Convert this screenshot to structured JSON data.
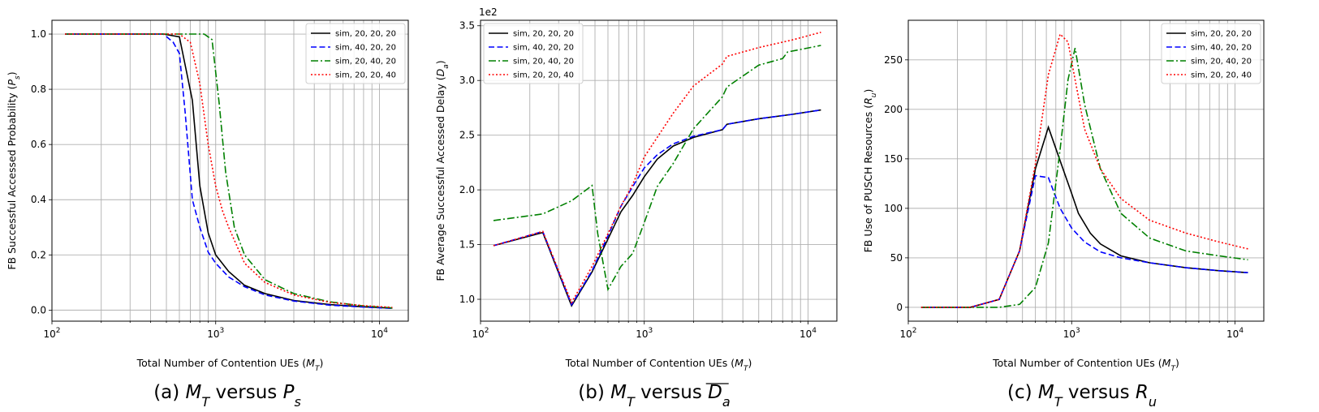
{
  "chart_data": [
    {
      "type": "line",
      "caption": "(a) M_T versus P_s",
      "xlabel": "Total Number of Contention UEs (M_T)",
      "ylabel": "FB Successful Accessed Probability (P_s)",
      "xscale": "log",
      "xlim": [
        100,
        15000
      ],
      "ylim": [
        -0.04,
        1.05
      ],
      "yticks": [
        0.0,
        0.2,
        0.4,
        0.6,
        0.8,
        1.0
      ],
      "ytick_labels": [
        "0.0",
        "0.2",
        "0.4",
        "0.6",
        "0.8",
        "1.0"
      ],
      "y_offset_label": "",
      "grid": true,
      "legend_position": "top-right",
      "series": [
        {
          "name": "sim, 20, 20, 20",
          "color": "#000000",
          "style": "solid",
          "x": [
            120,
            240,
            360,
            480,
            600,
            720,
            800,
            900,
            1000,
            1200,
            1500,
            2000,
            3000,
            5000,
            8000,
            12000
          ],
          "y": [
            1.0,
            1.0,
            1.0,
            1.0,
            0.99,
            0.76,
            0.45,
            0.28,
            0.2,
            0.14,
            0.09,
            0.06,
            0.035,
            0.02,
            0.012,
            0.007
          ]
        },
        {
          "name": "sim, 40, 20, 20",
          "color": "#0000ff",
          "style": "dashed",
          "x": [
            120,
            240,
            360,
            480,
            550,
            600,
            650,
            720,
            800,
            900,
            1000,
            1200,
            1500,
            2000,
            3000,
            5000,
            8000,
            12000
          ],
          "y": [
            1.0,
            1.0,
            1.0,
            1.0,
            0.97,
            0.93,
            0.72,
            0.4,
            0.3,
            0.21,
            0.17,
            0.12,
            0.085,
            0.055,
            0.033,
            0.018,
            0.011,
            0.006
          ]
        },
        {
          "name": "sim, 20, 40, 20",
          "color": "#008000",
          "style": "dashdot",
          "x": [
            120,
            240,
            360,
            480,
            600,
            720,
            850,
            950,
            1050,
            1150,
            1300,
            1500,
            2000,
            3000,
            5000,
            8000,
            12000
          ],
          "y": [
            1.0,
            1.0,
            1.0,
            1.0,
            1.0,
            1.0,
            1.0,
            0.98,
            0.75,
            0.5,
            0.3,
            0.2,
            0.11,
            0.06,
            0.03,
            0.015,
            0.008
          ]
        },
        {
          "name": "sim, 20, 20, 40",
          "color": "#ff0000",
          "style": "dotted",
          "x": [
            120,
            240,
            360,
            480,
            600,
            700,
            800,
            900,
            1000,
            1100,
            1200,
            1500,
            2000,
            3000,
            5000,
            8000,
            12000
          ],
          "y": [
            1.0,
            1.0,
            1.0,
            1.0,
            1.0,
            0.97,
            0.82,
            0.6,
            0.45,
            0.36,
            0.3,
            0.17,
            0.1,
            0.055,
            0.028,
            0.016,
            0.01
          ]
        }
      ]
    },
    {
      "type": "line",
      "caption": "(b) M_T versus D_a",
      "xlabel": "Total Number of Contention UEs (M_T)",
      "ylabel": "FB Average Successful Accessed Delay (D_a)",
      "xscale": "log",
      "xlim": [
        100,
        15000
      ],
      "ylim": [
        0.8,
        3.55
      ],
      "yticks": [
        1.0,
        1.5,
        2.0,
        2.5,
        3.0,
        3.5
      ],
      "ytick_labels": [
        "1.0",
        "1.5",
        "2.0",
        "2.5",
        "3.0",
        "3.5"
      ],
      "y_offset_label": "1e2",
      "grid": true,
      "legend_position": "top-left",
      "series": [
        {
          "name": "sim, 20, 20, 20",
          "color": "#000000",
          "style": "solid",
          "x": [
            120,
            240,
            360,
            480,
            600,
            720,
            850,
            1000,
            1200,
            1500,
            2000,
            3000,
            3200,
            5000,
            8000,
            12000
          ],
          "y": [
            1.49,
            1.61,
            0.94,
            1.25,
            1.55,
            1.8,
            1.95,
            2.12,
            2.28,
            2.4,
            2.48,
            2.55,
            2.6,
            2.65,
            2.69,
            2.73
          ]
        },
        {
          "name": "sim, 40, 20, 20",
          "color": "#0000ff",
          "style": "dashed",
          "x": [
            120,
            240,
            360,
            480,
            600,
            720,
            850,
            1000,
            1200,
            1500,
            2000,
            3000,
            3200,
            5000,
            8000,
            12000
          ],
          "y": [
            1.49,
            1.62,
            0.95,
            1.26,
            1.58,
            1.85,
            2.03,
            2.2,
            2.32,
            2.42,
            2.49,
            2.55,
            2.6,
            2.65,
            2.69,
            2.73
          ]
        },
        {
          "name": "sim, 20, 40, 20",
          "color": "#008000",
          "style": "dashdot",
          "x": [
            120,
            240,
            360,
            480,
            520,
            600,
            720,
            850,
            1000,
            1200,
            1500,
            2000,
            2500,
            3000,
            3200,
            5000,
            7000,
            7500,
            12000
          ],
          "y": [
            1.72,
            1.78,
            1.9,
            2.04,
            1.6,
            1.09,
            1.3,
            1.42,
            1.7,
            2.03,
            2.24,
            2.56,
            2.72,
            2.85,
            2.94,
            3.14,
            3.2,
            3.26,
            3.32
          ]
        },
        {
          "name": "sim, 20, 20, 40",
          "color": "#ff0000",
          "style": "dotted",
          "x": [
            120,
            240,
            360,
            480,
            600,
            720,
            850,
            1000,
            1200,
            1500,
            2000,
            3000,
            3200,
            5000,
            8000,
            12000
          ],
          "y": [
            1.49,
            1.62,
            0.97,
            1.3,
            1.6,
            1.85,
            2.05,
            2.3,
            2.48,
            2.7,
            2.95,
            3.15,
            3.22,
            3.3,
            3.37,
            3.44
          ]
        }
      ]
    },
    {
      "type": "line",
      "caption": "(c) M_T versus R_u",
      "xlabel": "Total Number of Contention UEs (M_T)",
      "ylabel": "FB Use of PUSCH Resources (R_u)",
      "xscale": "log",
      "xlim": [
        100,
        15000
      ],
      "ylim": [
        -14,
        290
      ],
      "yticks": [
        0,
        50,
        100,
        150,
        200,
        250
      ],
      "ytick_labels": [
        "0",
        "50",
        "100",
        "150",
        "200",
        "250"
      ],
      "y_offset_label": "",
      "grid": true,
      "legend_position": "top-right",
      "series": [
        {
          "name": "sim, 20, 20, 20",
          "color": "#000000",
          "style": "solid",
          "x": [
            120,
            240,
            360,
            480,
            600,
            720,
            850,
            1000,
            1100,
            1300,
            1500,
            2000,
            3000,
            5000,
            8000,
            12000
          ],
          "y": [
            0,
            0,
            8,
            57,
            140,
            182,
            148,
            115,
            95,
            75,
            64,
            52,
            45,
            40,
            37,
            35
          ]
        },
        {
          "name": "sim, 40, 20, 20",
          "color": "#0000ff",
          "style": "dashed",
          "x": [
            120,
            240,
            360,
            480,
            600,
            720,
            850,
            1000,
            1200,
            1500,
            2000,
            3000,
            5000,
            8000,
            12000
          ],
          "y": [
            0,
            0,
            8,
            57,
            133,
            131,
            100,
            80,
            66,
            56,
            50,
            45,
            40,
            37,
            35
          ]
        },
        {
          "name": "sim, 20, 40, 20",
          "color": "#008000",
          "style": "dashdot",
          "x": [
            120,
            240,
            360,
            480,
            600,
            720,
            850,
            950,
            1050,
            1200,
            1500,
            2000,
            3000,
            5000,
            8000,
            12000
          ],
          "y": [
            0,
            0,
            0,
            3,
            20,
            65,
            160,
            230,
            262,
            205,
            140,
            95,
            70,
            57,
            52,
            48
          ]
        },
        {
          "name": "sim, 20, 20, 40",
          "color": "#ff0000",
          "style": "dotted",
          "x": [
            120,
            240,
            360,
            480,
            600,
            720,
            850,
            950,
            1050,
            1200,
            1500,
            2000,
            3000,
            5000,
            8000,
            12000
          ],
          "y": [
            0,
            0,
            8,
            57,
            145,
            235,
            276,
            268,
            230,
            180,
            140,
            110,
            88,
            75,
            66,
            59
          ]
        }
      ]
    }
  ]
}
